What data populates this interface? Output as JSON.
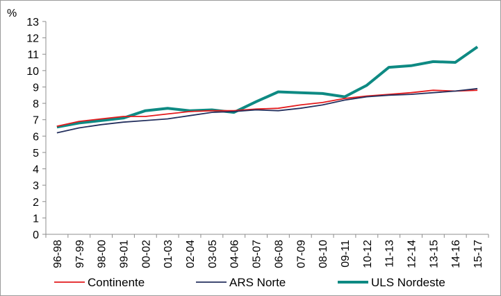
{
  "chart_data": {
    "type": "line",
    "ylabel": "%",
    "ylim": [
      0,
      13
    ],
    "yticks": [
      0,
      1,
      2,
      3,
      4,
      5,
      6,
      7,
      8,
      9,
      10,
      11,
      12,
      13
    ],
    "categories": [
      "96-98",
      "97-99",
      "98-00",
      "99-01",
      "00-02",
      "01-03",
      "02-04",
      "03-05",
      "04-06",
      "05-07",
      "06-08",
      "07-09",
      "08-10",
      "09-11",
      "10-12",
      "11-13",
      "12-14",
      "13-15",
      "14-16",
      "15-17"
    ],
    "grid": false,
    "legend_position": "bottom",
    "series": [
      {
        "name": "Continente",
        "color": "#e31a1c",
        "values": [
          6.6,
          6.9,
          7.05,
          7.2,
          7.2,
          7.35,
          7.5,
          7.55,
          7.55,
          7.65,
          7.7,
          7.9,
          8.05,
          8.3,
          8.45,
          8.55,
          8.65,
          8.8,
          8.75,
          8.8
        ]
      },
      {
        "name": "ARS Norte",
        "color": "#24305e",
        "values": [
          6.2,
          6.5,
          6.7,
          6.85,
          6.95,
          7.05,
          7.25,
          7.45,
          7.5,
          7.6,
          7.55,
          7.7,
          7.9,
          8.2,
          8.4,
          8.5,
          8.55,
          8.65,
          8.75,
          8.9
        ]
      },
      {
        "name": "ULS Nordeste",
        "color": "#0e8a83",
        "values": [
          6.55,
          6.8,
          6.95,
          7.1,
          7.55,
          7.7,
          7.55,
          7.6,
          7.45,
          8.1,
          8.7,
          8.65,
          8.6,
          8.4,
          9.1,
          10.2,
          10.3,
          10.55,
          10.5,
          11.45
        ]
      }
    ]
  }
}
